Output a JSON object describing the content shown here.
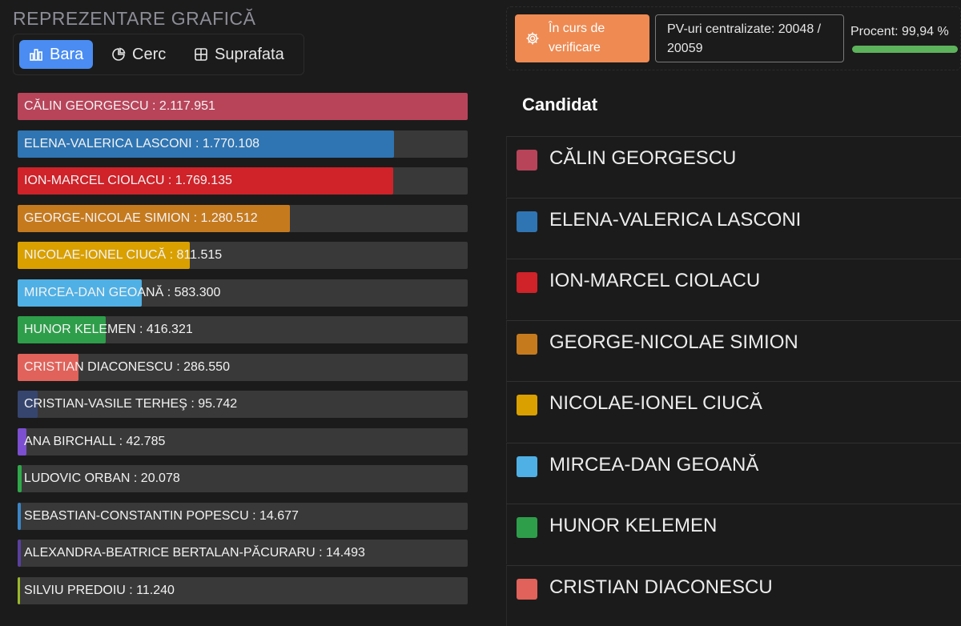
{
  "section_title": "REPREZENTARE GRAFICĂ",
  "tabs": [
    {
      "label": "Bara",
      "icon": "bar-chart-icon",
      "active": true
    },
    {
      "label": "Cerc",
      "icon": "pie-chart-icon",
      "active": false
    },
    {
      "label": "Suprafata",
      "icon": "area-grid-icon",
      "active": false
    }
  ],
  "status": {
    "verify_label": "În curs de verificare",
    "pv_label": "PV-uri centralizate: 20048 / 20059",
    "percent_label": "Procent: 99,94 %",
    "percent_value": 99.94,
    "colors": {
      "verify": "#ee8a52",
      "progress": "#5db35b"
    }
  },
  "table": {
    "header": "Candidat",
    "rows": [
      {
        "name": "CĂLIN GEORGESCU",
        "color": "#b8445a"
      },
      {
        "name": "ELENA-VALERICA LASCONI",
        "color": "#2f75b3"
      },
      {
        "name": "ION-MARCEL CIOLACU",
        "color": "#cf2229"
      },
      {
        "name": "GEORGE-NICOLAE SIMION",
        "color": "#c67a1e"
      },
      {
        "name": "NICOLAE-IONEL CIUCĂ",
        "color": "#d9a000"
      },
      {
        "name": "MIRCEA-DAN GEOANĂ",
        "color": "#4fb0e5"
      },
      {
        "name": "HUNOR KELEMEN",
        "color": "#2e9e4a"
      },
      {
        "name": "CRISTIAN DIACONESCU",
        "color": "#e0625a"
      }
    ]
  },
  "chart_data": {
    "type": "bar",
    "orientation": "horizontal",
    "xlim": [
      0,
      2117951
    ],
    "categories": [
      "CĂLIN GEORGESCU",
      "ELENA-VALERICA LASCONI",
      "ION-MARCEL CIOLACU",
      "GEORGE-NICOLAE SIMION",
      "NICOLAE-IONEL CIUCĂ",
      "MIRCEA-DAN GEOANĂ",
      "HUNOR KELEMEN",
      "CRISTIAN DIACONESCU",
      "CRISTIAN-VASILE TERHEŞ",
      "ANA BIRCHALL",
      "LUDOVIC ORBAN",
      "SEBASTIAN-CONSTANTIN POPESCU",
      "ALEXANDRA-BEATRICE BERTALAN-PĂCURARU",
      "SILVIU PREDOIU"
    ],
    "values": [
      2117951,
      1770108,
      1769135,
      1280512,
      811515,
      583300,
      416321,
      286550,
      95742,
      42785,
      20078,
      14677,
      14493,
      11240
    ],
    "value_labels": [
      "2.117.951",
      "1.770.108",
      "1.769.135",
      "1.280.512",
      "811.515",
      "583.300",
      "416.321",
      "286.550",
      "95.742",
      "42.785",
      "20.078",
      "14.677",
      "14.493",
      "11.240"
    ],
    "colors": [
      "#b8445a",
      "#2f75b3",
      "#cf2229",
      "#c67a1e",
      "#d9a000",
      "#4fb0e5",
      "#2e9e4a",
      "#e0625a",
      "#36456e",
      "#7b4fcf",
      "#2fa84a",
      "#3a86c8",
      "#5a3fa0",
      "#9ab82a"
    ]
  }
}
